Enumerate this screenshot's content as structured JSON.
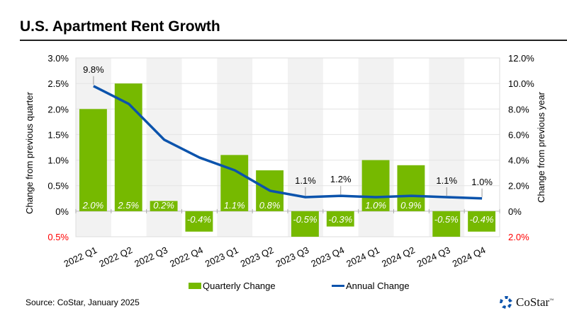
{
  "header": {
    "title": "U.S. Apartment Rent Growth"
  },
  "footer": {
    "source": "Source: CoStar, January 2025",
    "logo_text": "CoStar",
    "logo_tm": "™"
  },
  "colors": {
    "bar": "#76b900",
    "line": "#0b53ac",
    "band": "#f2f2f2",
    "negative_tick": "#ff0000"
  },
  "chart_data": {
    "type": "bar",
    "title": "U.S. Apartment Rent Growth",
    "categories": [
      "2022 Q1",
      "2022 Q2",
      "2022 Q3",
      "2022 Q4",
      "2023 Q1",
      "2023 Q2",
      "2023 Q3",
      "2023 Q4",
      "2024 Q1",
      "2024 Q2",
      "2024 Q3",
      "2024 Q4"
    ],
    "series": [
      {
        "name": "Quarterly Change",
        "type": "bar",
        "axis": "left",
        "values": [
          2.0,
          2.5,
          0.2,
          -0.4,
          1.1,
          0.8,
          -0.5,
          -0.3,
          1.0,
          0.9,
          -0.5,
          -0.4
        ],
        "labels": [
          "2.0%",
          "2.5%",
          "0.2%",
          "-0.4%",
          "1.1%",
          "0.8%",
          "-0.5%",
          "-0.3%",
          "1.0%",
          "0.9%",
          "-0.5%",
          "-0.4%"
        ]
      },
      {
        "name": "Annual Change",
        "type": "line",
        "axis": "right",
        "values": [
          9.8,
          8.4,
          5.6,
          4.2,
          3.2,
          1.6,
          1.1,
          1.2,
          1.1,
          1.2,
          1.1,
          1.0
        ],
        "labels": [
          "9.8%",
          "",
          "",
          "",
          "",
          "",
          "1.1%",
          "1.2%",
          "",
          "",
          "1.1%",
          "1.0%"
        ]
      }
    ],
    "ylabel": "Change from previous quarter",
    "y2label": "Change from previous year",
    "ylim": [
      -0.5,
      3.0
    ],
    "y2lim": [
      -2.0,
      12.0
    ],
    "yticks": [
      "0.5%",
      "0%",
      "0.5%",
      "1.0%",
      "1.5%",
      "2.0%",
      "2.5%",
      "3.0%"
    ],
    "y2ticks": [
      "2.0%",
      "0%",
      "2.0%",
      "4.0%",
      "6.0%",
      "8.0%",
      "10.0%",
      "12.0%"
    ],
    "grid": true,
    "legend": "bottom-center",
    "legend_entries": [
      "Quarterly Change",
      "Annual Change"
    ]
  }
}
